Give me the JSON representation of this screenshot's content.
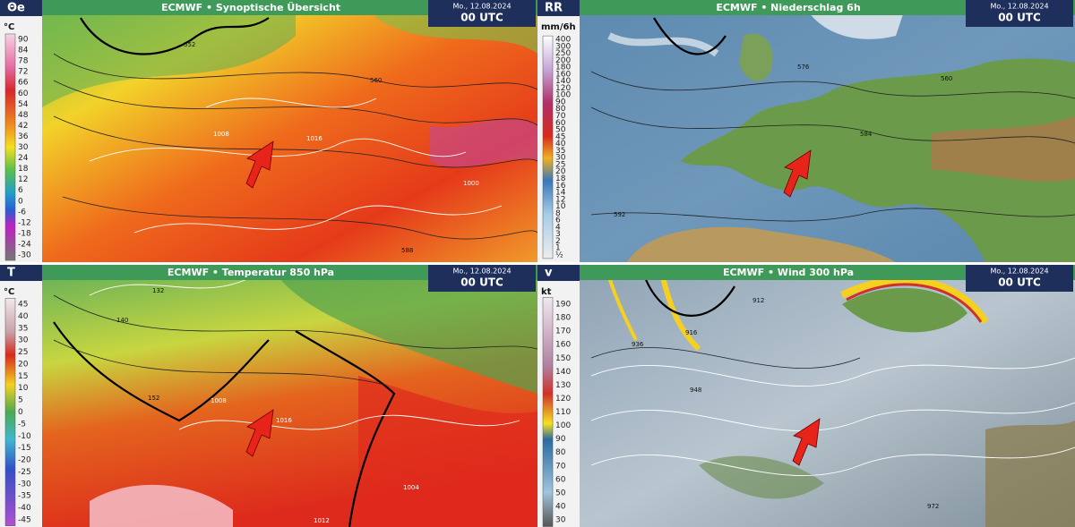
{
  "panels": [
    {
      "symbol": "Θe",
      "unit": "°C",
      "title": "ECMWF • Synoptische Übersicht",
      "date": "Mo., 12.08.2024",
      "time": "00 UTC",
      "legend": [
        90,
        84,
        78,
        72,
        66,
        60,
        54,
        48,
        42,
        36,
        30,
        24,
        18,
        12,
        6,
        0,
        -6,
        -12,
        -18,
        -24,
        -30
      ],
      "labels": [
        "552",
        "560",
        "1008",
        "1016",
        "1000",
        "588"
      ]
    },
    {
      "symbol": "RR",
      "unit": "mm/6h",
      "title": "ECMWF • Niederschlag 6h",
      "date": "Mo., 12.08.2024",
      "time": "00 UTC",
      "legend": [
        400,
        300,
        250,
        200,
        180,
        160,
        140,
        120,
        100,
        90,
        80,
        70,
        60,
        50,
        45,
        40,
        35,
        30,
        25,
        20,
        18,
        16,
        14,
        12,
        10,
        8,
        6,
        4,
        3,
        2,
        1,
        "½"
      ],
      "labels": [
        "560",
        "576",
        "592",
        "584"
      ]
    },
    {
      "symbol": "T",
      "unit": "°C",
      "title": "ECMWF • Temperatur 850 hPa",
      "date": "Mo., 12.08.2024",
      "time": "00 UTC",
      "legend": [
        45,
        40,
        35,
        30,
        25,
        20,
        15,
        10,
        5,
        0,
        -5,
        -10,
        -15,
        -20,
        -25,
        -30,
        -35,
        -40,
        -45
      ],
      "labels": [
        "132",
        "140",
        "152",
        "1008",
        "1016",
        "1004",
        "1012"
      ]
    },
    {
      "symbol": "v",
      "unit": "kt",
      "title": "ECMWF • Wind 300 hPa",
      "date": "Mo., 12.08.2024",
      "time": "00 UTC",
      "legend": [
        190,
        180,
        170,
        160,
        150,
        140,
        130,
        120,
        110,
        100,
        90,
        80,
        70,
        60,
        50,
        40,
        30
      ],
      "labels": [
        "912",
        "916",
        "936",
        "948",
        "972"
      ]
    }
  ]
}
